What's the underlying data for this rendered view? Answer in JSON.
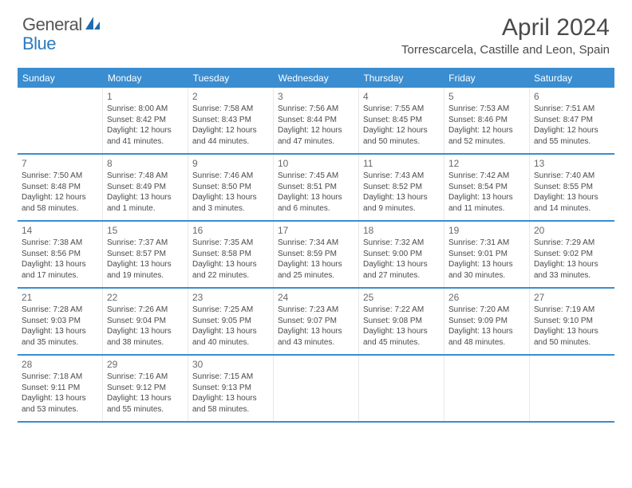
{
  "logo": {
    "textA": "General",
    "textB": "Blue",
    "colorA": "#555555",
    "colorB": "#2b7bbf"
  },
  "header": {
    "monthTitle": "April 2024",
    "location": "Torrescarcela, Castille and Leon, Spain"
  },
  "styling": {
    "accent": "#3a8dd0",
    "headerText": "#ffffff",
    "bodyText": "#4a4a4a",
    "dayNumText": "#6a6a6a",
    "cellBorder": "#e8e8e8",
    "background": "#ffffff",
    "monthTitleSize": 30,
    "locationSize": 15,
    "dayHeaderSize": 12,
    "dayNumSize": 12,
    "cellTextSize": 10
  },
  "dayNames": [
    "Sunday",
    "Monday",
    "Tuesday",
    "Wednesday",
    "Thursday",
    "Friday",
    "Saturday"
  ],
  "weeks": [
    [
      {
        "n": "",
        "lines": []
      },
      {
        "n": "1",
        "lines": [
          "Sunrise: 8:00 AM",
          "Sunset: 8:42 PM",
          "Daylight: 12 hours and 41 minutes."
        ]
      },
      {
        "n": "2",
        "lines": [
          "Sunrise: 7:58 AM",
          "Sunset: 8:43 PM",
          "Daylight: 12 hours and 44 minutes."
        ]
      },
      {
        "n": "3",
        "lines": [
          "Sunrise: 7:56 AM",
          "Sunset: 8:44 PM",
          "Daylight: 12 hours and 47 minutes."
        ]
      },
      {
        "n": "4",
        "lines": [
          "Sunrise: 7:55 AM",
          "Sunset: 8:45 PM",
          "Daylight: 12 hours and 50 minutes."
        ]
      },
      {
        "n": "5",
        "lines": [
          "Sunrise: 7:53 AM",
          "Sunset: 8:46 PM",
          "Daylight: 12 hours and 52 minutes."
        ]
      },
      {
        "n": "6",
        "lines": [
          "Sunrise: 7:51 AM",
          "Sunset: 8:47 PM",
          "Daylight: 12 hours and 55 minutes."
        ]
      }
    ],
    [
      {
        "n": "7",
        "lines": [
          "Sunrise: 7:50 AM",
          "Sunset: 8:48 PM",
          "Daylight: 12 hours and 58 minutes."
        ]
      },
      {
        "n": "8",
        "lines": [
          "Sunrise: 7:48 AM",
          "Sunset: 8:49 PM",
          "Daylight: 13 hours and 1 minute."
        ]
      },
      {
        "n": "9",
        "lines": [
          "Sunrise: 7:46 AM",
          "Sunset: 8:50 PM",
          "Daylight: 13 hours and 3 minutes."
        ]
      },
      {
        "n": "10",
        "lines": [
          "Sunrise: 7:45 AM",
          "Sunset: 8:51 PM",
          "Daylight: 13 hours and 6 minutes."
        ]
      },
      {
        "n": "11",
        "lines": [
          "Sunrise: 7:43 AM",
          "Sunset: 8:52 PM",
          "Daylight: 13 hours and 9 minutes."
        ]
      },
      {
        "n": "12",
        "lines": [
          "Sunrise: 7:42 AM",
          "Sunset: 8:54 PM",
          "Daylight: 13 hours and 11 minutes."
        ]
      },
      {
        "n": "13",
        "lines": [
          "Sunrise: 7:40 AM",
          "Sunset: 8:55 PM",
          "Daylight: 13 hours and 14 minutes."
        ]
      }
    ],
    [
      {
        "n": "14",
        "lines": [
          "Sunrise: 7:38 AM",
          "Sunset: 8:56 PM",
          "Daylight: 13 hours and 17 minutes."
        ]
      },
      {
        "n": "15",
        "lines": [
          "Sunrise: 7:37 AM",
          "Sunset: 8:57 PM",
          "Daylight: 13 hours and 19 minutes."
        ]
      },
      {
        "n": "16",
        "lines": [
          "Sunrise: 7:35 AM",
          "Sunset: 8:58 PM",
          "Daylight: 13 hours and 22 minutes."
        ]
      },
      {
        "n": "17",
        "lines": [
          "Sunrise: 7:34 AM",
          "Sunset: 8:59 PM",
          "Daylight: 13 hours and 25 minutes."
        ]
      },
      {
        "n": "18",
        "lines": [
          "Sunrise: 7:32 AM",
          "Sunset: 9:00 PM",
          "Daylight: 13 hours and 27 minutes."
        ]
      },
      {
        "n": "19",
        "lines": [
          "Sunrise: 7:31 AM",
          "Sunset: 9:01 PM",
          "Daylight: 13 hours and 30 minutes."
        ]
      },
      {
        "n": "20",
        "lines": [
          "Sunrise: 7:29 AM",
          "Sunset: 9:02 PM",
          "Daylight: 13 hours and 33 minutes."
        ]
      }
    ],
    [
      {
        "n": "21",
        "lines": [
          "Sunrise: 7:28 AM",
          "Sunset: 9:03 PM",
          "Daylight: 13 hours and 35 minutes."
        ]
      },
      {
        "n": "22",
        "lines": [
          "Sunrise: 7:26 AM",
          "Sunset: 9:04 PM",
          "Daylight: 13 hours and 38 minutes."
        ]
      },
      {
        "n": "23",
        "lines": [
          "Sunrise: 7:25 AM",
          "Sunset: 9:05 PM",
          "Daylight: 13 hours and 40 minutes."
        ]
      },
      {
        "n": "24",
        "lines": [
          "Sunrise: 7:23 AM",
          "Sunset: 9:07 PM",
          "Daylight: 13 hours and 43 minutes."
        ]
      },
      {
        "n": "25",
        "lines": [
          "Sunrise: 7:22 AM",
          "Sunset: 9:08 PM",
          "Daylight: 13 hours and 45 minutes."
        ]
      },
      {
        "n": "26",
        "lines": [
          "Sunrise: 7:20 AM",
          "Sunset: 9:09 PM",
          "Daylight: 13 hours and 48 minutes."
        ]
      },
      {
        "n": "27",
        "lines": [
          "Sunrise: 7:19 AM",
          "Sunset: 9:10 PM",
          "Daylight: 13 hours and 50 minutes."
        ]
      }
    ],
    [
      {
        "n": "28",
        "lines": [
          "Sunrise: 7:18 AM",
          "Sunset: 9:11 PM",
          "Daylight: 13 hours and 53 minutes."
        ]
      },
      {
        "n": "29",
        "lines": [
          "Sunrise: 7:16 AM",
          "Sunset: 9:12 PM",
          "Daylight: 13 hours and 55 minutes."
        ]
      },
      {
        "n": "30",
        "lines": [
          "Sunrise: 7:15 AM",
          "Sunset: 9:13 PM",
          "Daylight: 13 hours and 58 minutes."
        ]
      },
      {
        "n": "",
        "lines": []
      },
      {
        "n": "",
        "lines": []
      },
      {
        "n": "",
        "lines": []
      },
      {
        "n": "",
        "lines": []
      }
    ]
  ]
}
